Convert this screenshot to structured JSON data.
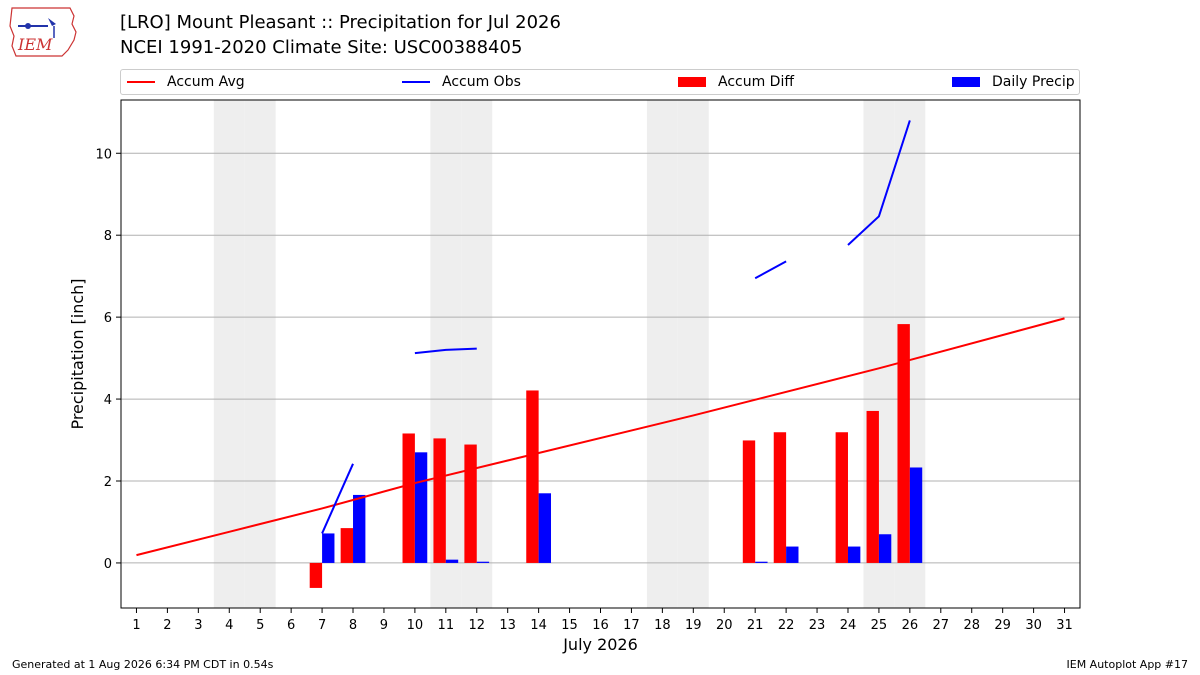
{
  "logo": {
    "text": "IEM"
  },
  "title_line1": "[LRO] Mount Pleasant :: Precipitation for Jul 2026",
  "title_line2": "NCEI 1991-2020 Climate Site: USC00388405",
  "colors": {
    "avg": "#ff0000",
    "obs": "#0000ff",
    "diff": "#ff0000",
    "daily": "#0000ff",
    "weekend": "#eeeeee",
    "grid": "#b0b0b0"
  },
  "legend": {
    "accum_avg": "Accum Avg",
    "accum_obs": "Accum Obs",
    "accum_diff": "Accum Diff",
    "daily_precip": "Daily Precip"
  },
  "footer": {
    "left": "Generated at 1 Aug 2026 6:34 PM CDT in 0.54s",
    "right": "IEM Autoplot App #17"
  },
  "chart_data": {
    "type": "bar",
    "xlabel": "July 2026",
    "ylabel": "Precipitation [inch]",
    "xlim": [
      0.5,
      31.5
    ],
    "ylim": [
      -1.1,
      11.3
    ],
    "yticks": [
      0,
      2,
      4,
      6,
      8,
      10
    ],
    "x_ticks": [
      1,
      2,
      3,
      4,
      5,
      6,
      7,
      8,
      9,
      10,
      11,
      12,
      13,
      14,
      15,
      16,
      17,
      18,
      19,
      20,
      21,
      22,
      23,
      24,
      25,
      26,
      27,
      28,
      29,
      30,
      31
    ],
    "grid": "y",
    "legend_position": "top",
    "weekend_days": [
      4,
      5,
      11,
      12,
      18,
      19,
      25,
      26
    ],
    "series": [
      {
        "name": "Accum Avg",
        "kind": "line",
        "points": [
          [
            1,
            0.19
          ],
          [
            4,
            0.76
          ],
          [
            7,
            1.33
          ],
          [
            10,
            1.95
          ],
          [
            13,
            2.5
          ],
          [
            19,
            3.6
          ],
          [
            25,
            4.75
          ],
          [
            31,
            5.97
          ]
        ]
      },
      {
        "name": "Accum Obs",
        "kind": "line",
        "segments": [
          [
            [
              7,
              0.72
            ],
            [
              8,
              2.42
            ]
          ],
          [
            [
              10,
              5.12
            ],
            [
              11,
              5.2
            ],
            [
              12,
              5.23
            ]
          ],
          [
            [
              21,
              6.95
            ],
            [
              22,
              7.36
            ]
          ],
          [
            [
              24,
              7.76
            ],
            [
              25,
              8.46
            ],
            [
              26,
              10.8
            ]
          ]
        ]
      },
      {
        "name": "Accum Diff",
        "kind": "bar",
        "days": [
          7,
          8,
          10,
          11,
          12,
          14,
          21,
          22,
          24,
          25,
          26
        ],
        "values": [
          -0.61,
          0.85,
          3.16,
          3.04,
          2.89,
          4.21,
          2.99,
          3.19,
          3.19,
          3.71,
          5.83
        ]
      },
      {
        "name": "Daily Precip",
        "kind": "bar",
        "days": [
          7,
          8,
          10,
          11,
          12,
          14,
          21,
          22,
          24,
          25,
          26
        ],
        "values": [
          0.72,
          1.66,
          2.7,
          0.08,
          0.03,
          1.7,
          0.03,
          0.4,
          0.4,
          0.7,
          2.33
        ]
      }
    ]
  }
}
